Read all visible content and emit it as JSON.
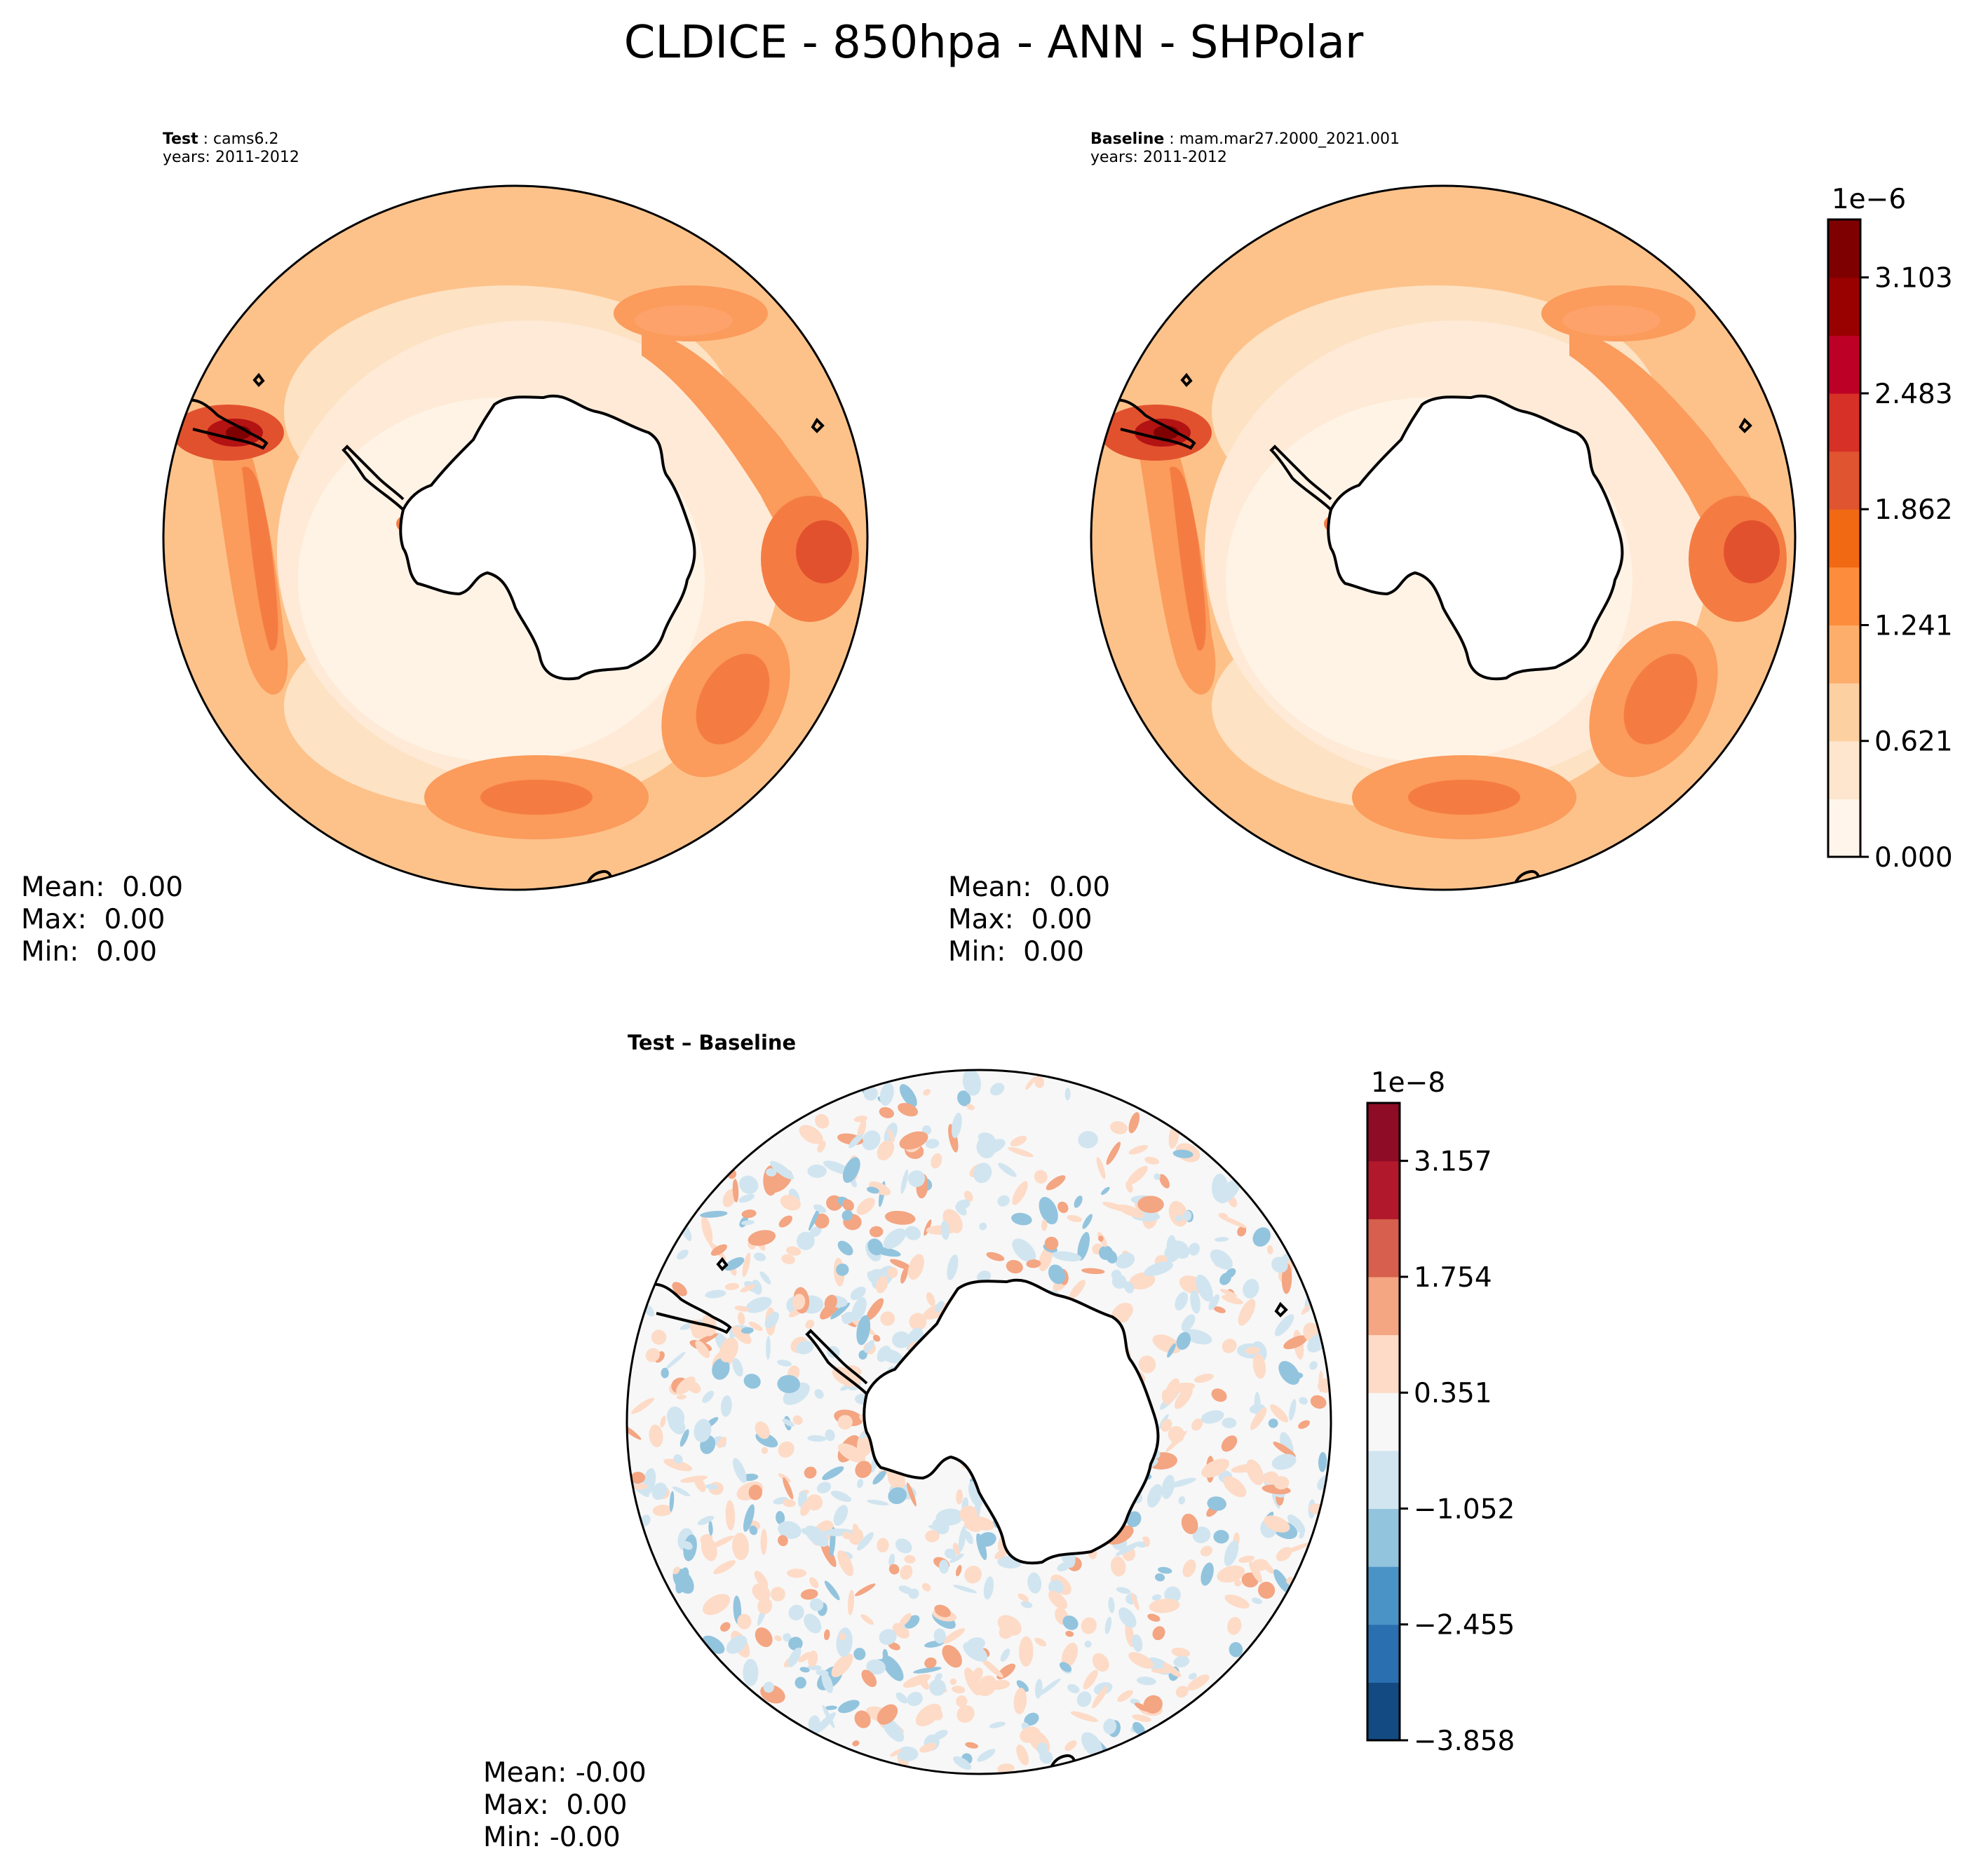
{
  "figure": {
    "title": "CLDICE - 850hpa - ANN - SHPolar"
  },
  "panels": [
    {
      "id": "test",
      "label_bold": "Test",
      "label_rest": " : cams6.2",
      "years": "years: 2011-2012",
      "stats": {
        "mean": "Mean:  0.00",
        "max": "Max:  0.00",
        "min": "Min:  0.00"
      }
    },
    {
      "id": "baseline",
      "label_bold": "Baseline",
      "label_rest": " : mam.mar27.2000_2021.001",
      "years": "years: 2011-2012",
      "stats": {
        "mean": "Mean:  0.00",
        "max": "Max:  0.00",
        "min": "Min:  0.00"
      }
    },
    {
      "id": "diff",
      "label_bold": "Test – Baseline",
      "stats": {
        "mean": "Mean: -0.00",
        "max": "Max:  0.00",
        "min": "Min: -0.00"
      }
    }
  ],
  "colorbars": [
    {
      "id": "main",
      "offset_label": "1e−6",
      "tick_labels": [
        "0.000",
        "0.621",
        "1.241",
        "1.862",
        "2.483",
        "3.103"
      ],
      "colors": [
        "#fff5eb",
        "#fee6ce",
        "#fdd0a2",
        "#fdae6b",
        "#fd8d3c",
        "#f16913",
        "#e0542f",
        "#d73027",
        "#bd0026",
        "#990000",
        "#7f0000"
      ]
    },
    {
      "id": "diff",
      "offset_label": "1e−8",
      "tick_labels": [
        "−3.858",
        "−2.455",
        "−1.052",
        "0.351",
        "1.754",
        "3.157"
      ],
      "colors": [
        "#134a82",
        "#2a6fb0",
        "#4a93c6",
        "#93c4de",
        "#d1e5f0",
        "#f7f7f7",
        "#fddbc7",
        "#f4a582",
        "#d6604d",
        "#b2182b",
        "#8e0c25"
      ]
    }
  ],
  "chart_data": {
    "type": "heatmap",
    "title": "CLDICE - 850hpa - ANN - SHPolar",
    "projection": "south-polar-stereographic",
    "maps": [
      {
        "name": "Test",
        "case": "cams6.2",
        "years": "2011-2012",
        "colormap": "oranges-reds",
        "colorbar_scale": "1e-6",
        "colorbar_ticks": [
          0.0,
          0.621,
          1.241,
          1.862,
          2.483,
          3.103
        ],
        "stats": {
          "mean": 0.0,
          "max": 0.0,
          "min": 0.0
        }
      },
      {
        "name": "Baseline",
        "case": "mam.mar27.2000_2021.001",
        "years": "2011-2012",
        "colormap": "oranges-reds",
        "colorbar_scale": "1e-6",
        "colorbar_ticks": [
          0.0,
          0.621,
          1.241,
          1.862,
          2.483,
          3.103
        ],
        "stats": {
          "mean": 0.0,
          "max": 0.0,
          "min": 0.0
        }
      },
      {
        "name": "Test − Baseline",
        "colormap": "red-blue-diverging",
        "colorbar_scale": "1e-8",
        "colorbar_ticks": [
          -3.858,
          -2.455,
          -1.052,
          0.351,
          1.754,
          3.157
        ],
        "stats": {
          "mean": -0.0,
          "max": 0.0,
          "min": -0.0
        }
      }
    ]
  }
}
